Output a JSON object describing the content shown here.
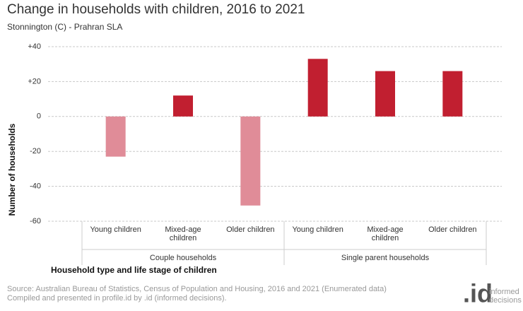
{
  "chart_data": {
    "type": "bar",
    "title": "Change in households with children, 2016 to 2021",
    "subtitle": "Stonnington (C) - Prahran SLA",
    "y_label": "Number of households",
    "x_label": "Household type and life stage of children",
    "groups": [
      {
        "name": "Couple households",
        "categories": [
          "Young children",
          "Mixed-age children",
          "Older children"
        ],
        "values": [
          -23,
          12,
          -51
        ],
        "colors": [
          "#e08c98",
          "#c11f30",
          "#e08c98"
        ]
      },
      {
        "name": "Single parent households",
        "categories": [
          "Young children",
          "Mixed-age children",
          "Older children"
        ],
        "values": [
          33,
          26,
          26
        ],
        "colors": [
          "#c11f30",
          "#c11f30",
          "#c11f30"
        ]
      }
    ],
    "ylim": [
      -60,
      40
    ],
    "yticks": [
      {
        "value": 40,
        "label": "+40"
      },
      {
        "value": 20,
        "label": "+20"
      },
      0,
      -20,
      -40,
      -60
    ],
    "grid": true,
    "source": [
      "Source: Australian Bureau of Statistics, Census of Population and Housing, 2016 and 2021 (Enumerated data)",
      "Compiled and presented in profile.id by .id (informed decisions)."
    ],
    "logo": {
      "mark": ".id",
      "text": "informed decisions"
    }
  }
}
